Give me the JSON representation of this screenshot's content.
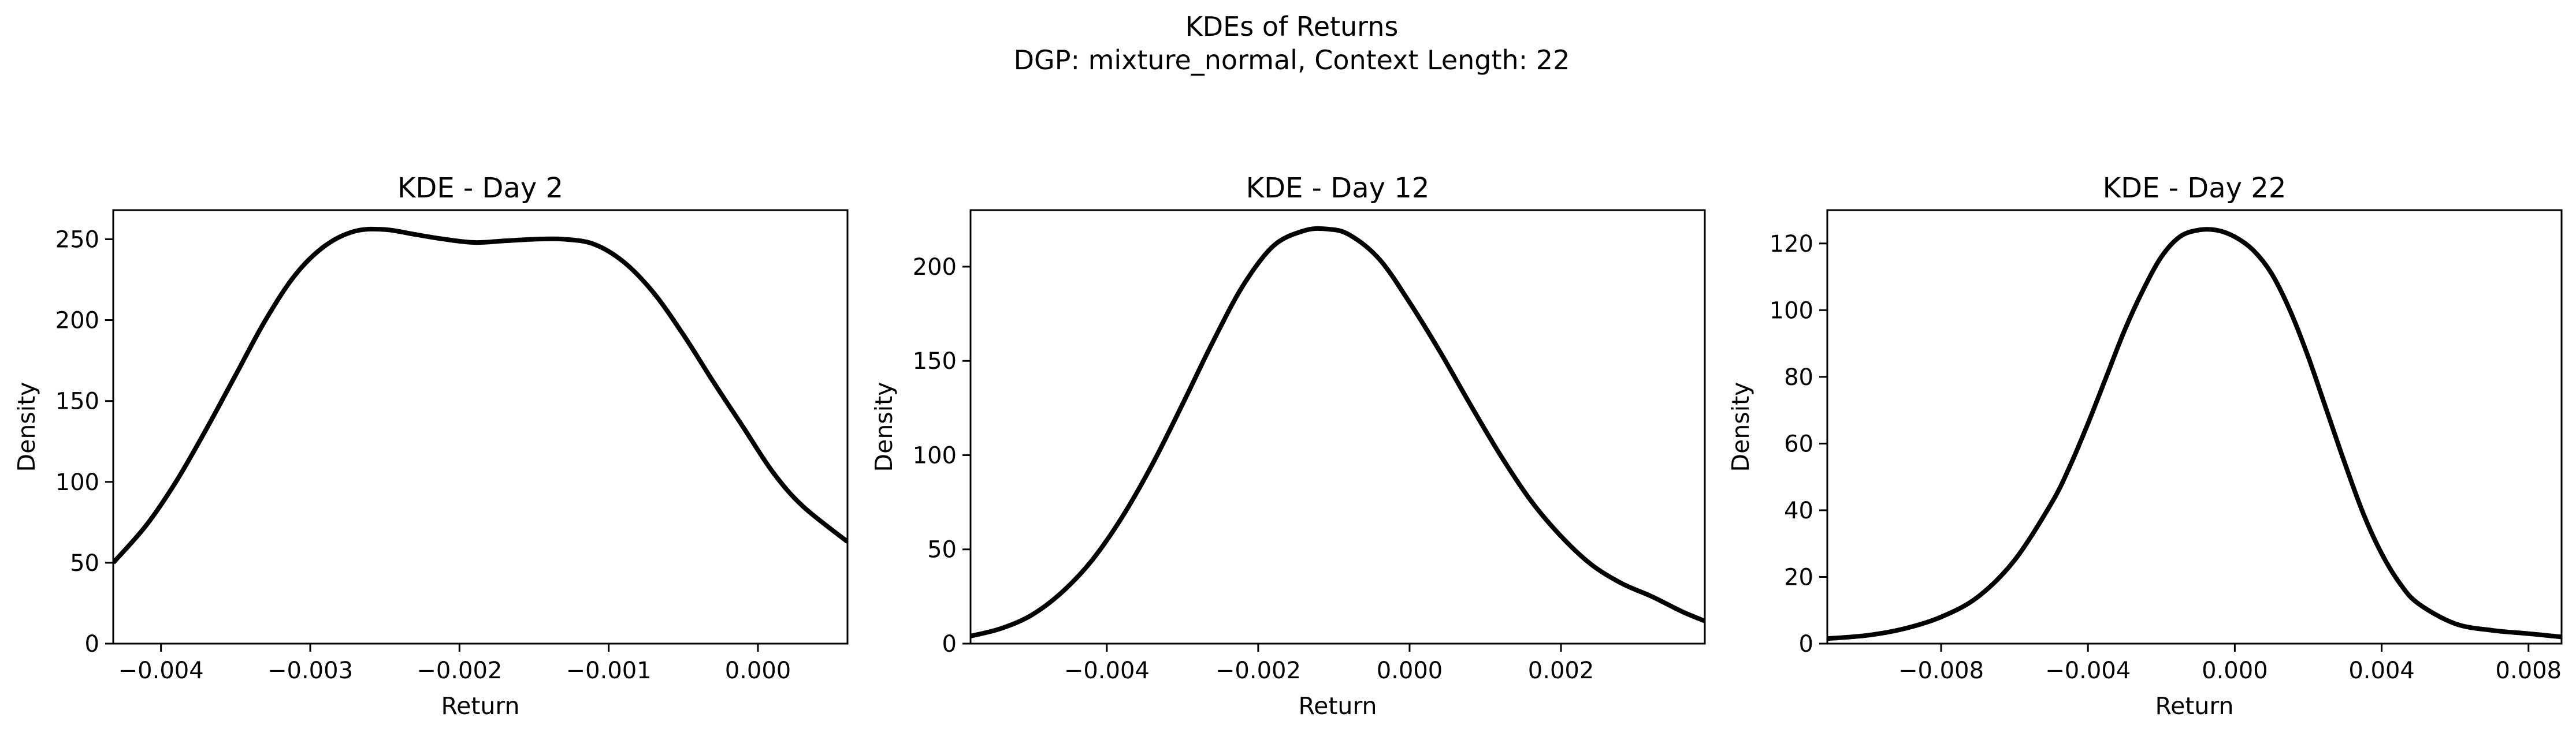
{
  "figure": {
    "title_line1": "KDEs of Returns",
    "title_line2": "DGP: mixture_normal, Context Length: 22"
  },
  "chart_data": [
    {
      "type": "line",
      "title": "KDE - Day 2",
      "xlabel": "Return",
      "ylabel": "Density",
      "xlim": [
        -0.00432,
        0.0006
      ],
      "ylim": [
        0,
        268
      ],
      "xticks": [
        -0.004,
        -0.003,
        -0.002,
        -0.001,
        0.0
      ],
      "xtick_labels": [
        "−0.004",
        "−0.003",
        "−0.002",
        "−0.001",
        "0.000"
      ],
      "yticks": [
        0,
        50,
        100,
        150,
        200,
        250
      ],
      "ytick_labels": [
        "0",
        "50",
        "100",
        "150",
        "200",
        "250"
      ],
      "color": "#000000",
      "grid": false,
      "series": [
        {
          "x": [
            -0.00432,
            -0.0041,
            -0.0039,
            -0.0037,
            -0.0035,
            -0.0033,
            -0.0031,
            -0.0029,
            -0.0027,
            -0.0025,
            -0.0023,
            -0.0021,
            -0.0019,
            -0.0017,
            -0.0015,
            -0.0013,
            -0.0011,
            -0.0009,
            -0.0007,
            -0.0005,
            -0.0003,
            -0.0001,
            0.0001,
            0.0003,
            0.0006
          ],
          "y": [
            50,
            73,
            100,
            132,
            166,
            200,
            228,
            246,
            255,
            256,
            253,
            250,
            248,
            249,
            250,
            250,
            247,
            236,
            217,
            191,
            162,
            134,
            106,
            85,
            63
          ]
        }
      ]
    },
    {
      "type": "line",
      "title": "KDE - Day 12",
      "xlabel": "Return",
      "ylabel": "Density",
      "xlim": [
        -0.0058,
        0.0039
      ],
      "ylim": [
        0,
        230
      ],
      "xticks": [
        -0.004,
        -0.002,
        0.0,
        0.002
      ],
      "xtick_labels": [
        "−0.004",
        "−0.002",
        "0.000",
        "0.002"
      ],
      "yticks": [
        0,
        50,
        100,
        150,
        200
      ],
      "ytick_labels": [
        "0",
        "50",
        "100",
        "150",
        "200"
      ],
      "color": "#000000",
      "grid": false,
      "series": [
        {
          "x": [
            -0.0058,
            -0.0054,
            -0.005,
            -0.0046,
            -0.0042,
            -0.0038,
            -0.0034,
            -0.003,
            -0.0026,
            -0.0022,
            -0.0018,
            -0.0014,
            -0.0011,
            -0.0008,
            -0.0004,
            0.0,
            0.0004,
            0.0008,
            0.0012,
            0.0016,
            0.002,
            0.0024,
            0.0028,
            0.0032,
            0.0036,
            0.0039
          ],
          "y": [
            4,
            8,
            15,
            27,
            44,
            67,
            95,
            127,
            160,
            190,
            211,
            219,
            220,
            217,
            204,
            181,
            155,
            127,
            100,
            76,
            57,
            42,
            32,
            25,
            17,
            12
          ]
        }
      ]
    },
    {
      "type": "line",
      "title": "KDE - Day 22",
      "xlabel": "Return",
      "ylabel": "Density",
      "xlim": [
        -0.0111,
        0.0089
      ],
      "ylim": [
        0,
        130
      ],
      "xticks": [
        -0.008,
        -0.004,
        0.0,
        0.004,
        0.008
      ],
      "xtick_labels": [
        "−0.008",
        "−0.004",
        "0.000",
        "0.004",
        "0.008"
      ],
      "yticks": [
        0,
        20,
        40,
        60,
        80,
        100,
        120
      ],
      "ytick_labels": [
        "0",
        "20",
        "40",
        "60",
        "80",
        "100",
        "120"
      ],
      "color": "#000000",
      "grid": false,
      "series": [
        {
          "x": [
            -0.0111,
            -0.01,
            -0.009,
            -0.008,
            -0.007,
            -0.006,
            -0.005,
            -0.0045,
            -0.004,
            -0.0035,
            -0.003,
            -0.0025,
            -0.002,
            -0.0015,
            -0.001,
            -0.0005,
            0.0,
            0.0005,
            0.001,
            0.0015,
            0.002,
            0.0025,
            0.003,
            0.0035,
            0.004,
            0.0045,
            0.005,
            0.006,
            0.007,
            0.008,
            0.0089
          ],
          "y": [
            1.5,
            2.5,
            4.5,
            8,
            14,
            25,
            42,
            53,
            66,
            80,
            94,
            106,
            116,
            122,
            124,
            124,
            122,
            118,
            111,
            100,
            86,
            70,
            54,
            39,
            27,
            18,
            12,
            6,
            4,
            3,
            2
          ]
        }
      ]
    }
  ]
}
